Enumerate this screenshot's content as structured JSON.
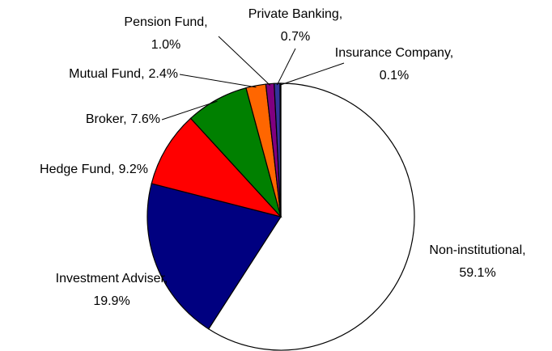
{
  "chart_data": {
    "type": "pie",
    "categories": [
      "Non-institutional,",
      "Investment Adviser,",
      "Hedge Fund,",
      "Broker,",
      "Mutual Fund,",
      "Pension Fund,",
      "Private Banking,",
      "Insurance Company,"
    ],
    "values": [
      59.1,
      19.9,
      9.2,
      7.6,
      2.4,
      1.0,
      0.7,
      0.1
    ],
    "value_labels": [
      "59.1%",
      "19.9%",
      "9.2%",
      "7.6%",
      "2.4%",
      "1.0%",
      "0.7%",
      "0.1%"
    ],
    "colors": [
      "#ffffff",
      "#000080",
      "#ff0000",
      "#008000",
      "#ff6600",
      "#800080",
      "#333399",
      "#808000"
    ]
  }
}
